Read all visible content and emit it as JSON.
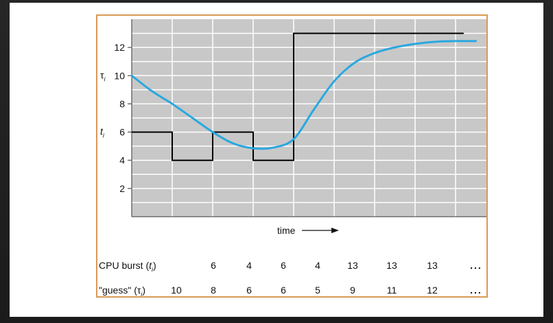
{
  "chart_data": {
    "type": "line",
    "title": "",
    "xlabel": "time",
    "ylabel": "",
    "y_ticks": [
      2,
      4,
      6,
      8,
      10,
      12
    ],
    "ylim": [
      0,
      14
    ],
    "xlim": [
      0,
      8.7
    ],
    "grid": true,
    "colors": {
      "plot_background": "#c8c8c8",
      "grid": "#ffffff",
      "burst_line": "#000000",
      "guess_line": "#29a8e0",
      "frame": "#d99a55"
    },
    "axis_markers": [
      {
        "symbol": "τ",
        "subscript": "i",
        "y": 10
      },
      {
        "symbol": "t",
        "subscript": "i",
        "y": 6
      }
    ],
    "series": [
      {
        "key": "burst",
        "style": "step",
        "points": [
          [
            0,
            6
          ],
          [
            1,
            6
          ],
          [
            1,
            4
          ],
          [
            2,
            4
          ],
          [
            2,
            6
          ],
          [
            3,
            6
          ],
          [
            3,
            4
          ],
          [
            4,
            4
          ],
          [
            4,
            13
          ],
          [
            8.2,
            13
          ]
        ]
      },
      {
        "key": "guess",
        "style": "smooth",
        "points": [
          [
            0,
            10
          ],
          [
            0.5,
            8.9
          ],
          [
            1,
            8
          ],
          [
            1.5,
            7
          ],
          [
            2,
            6
          ],
          [
            2.5,
            5.2
          ],
          [
            3,
            4.85
          ],
          [
            3.5,
            4.9
          ],
          [
            4,
            5.5
          ],
          [
            4.5,
            7.6
          ],
          [
            5,
            9.6
          ],
          [
            5.5,
            10.9
          ],
          [
            6,
            11.6
          ],
          [
            6.5,
            12
          ],
          [
            7,
            12.25
          ],
          [
            7.5,
            12.4
          ],
          [
            8,
            12.45
          ],
          [
            8.5,
            12.45
          ]
        ]
      }
    ]
  },
  "table": {
    "rows": [
      {
        "label_main": "CPU burst (",
        "label_sym": "t",
        "label_sub": "i",
        "label_end": ")",
        "values": [
          "",
          "6",
          "4",
          "6",
          "4",
          "13",
          "13",
          "13"
        ],
        "ellipsis": "..."
      },
      {
        "label_main": "\"guess\" (",
        "label_sym": "τ",
        "label_sub": "i",
        "label_end": ")",
        "values": [
          "10",
          "8",
          "6",
          "6",
          "5",
          "9",
          "11",
          "12"
        ],
        "ellipsis": "..."
      }
    ]
  }
}
